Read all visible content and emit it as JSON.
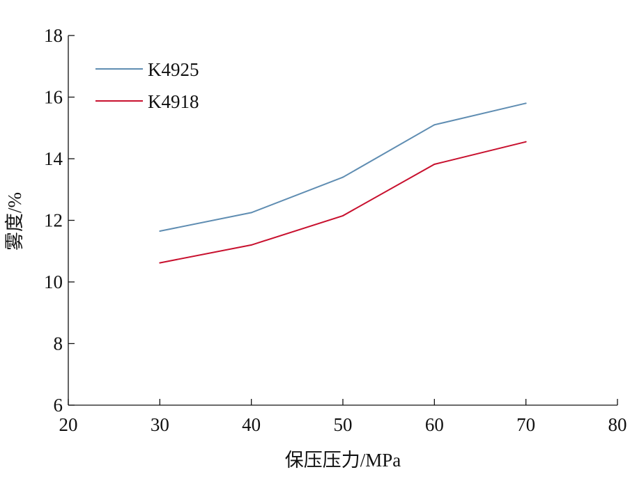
{
  "chart_data": {
    "type": "line",
    "title": "",
    "xlabel": "保压压力/MPa",
    "ylabel": "雾度/%",
    "xlim": [
      20,
      80
    ],
    "ylim": [
      6,
      18
    ],
    "xticks": [
      20,
      30,
      40,
      50,
      60,
      70,
      80
    ],
    "yticks": [
      6,
      8,
      10,
      12,
      14,
      16,
      18
    ],
    "grid": false,
    "legend_position": "top-left",
    "x": [
      30,
      40,
      50,
      60,
      70
    ],
    "series": [
      {
        "name": "K4925",
        "color": "#5f8db2",
        "values": [
          11.65,
          12.25,
          13.4,
          15.1,
          15.8
        ]
      },
      {
        "name": "K4918",
        "color": "#c8102e",
        "values": [
          10.62,
          11.2,
          12.15,
          13.82,
          14.55
        ]
      }
    ]
  }
}
